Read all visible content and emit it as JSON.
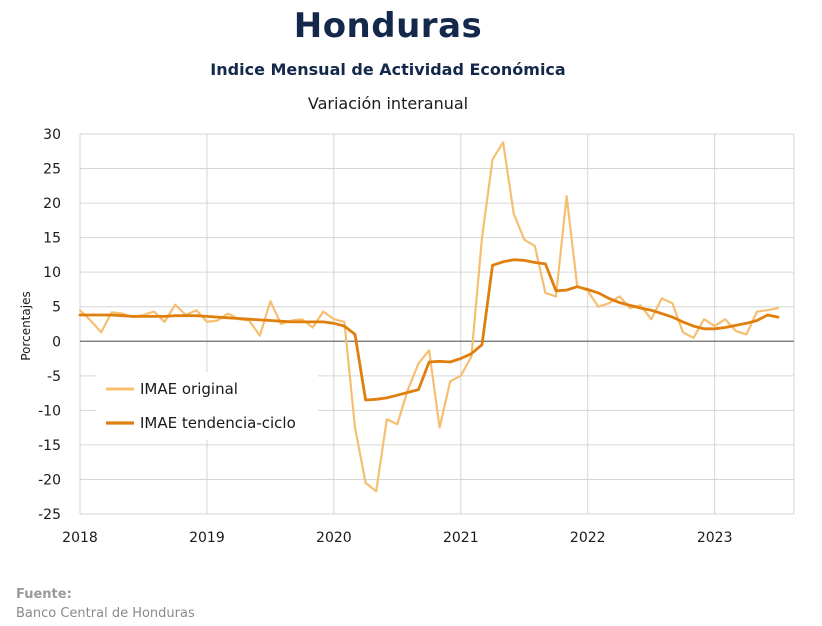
{
  "header": {
    "title": "Honduras",
    "subtitle": "Indice Mensual de  Actividad Económica",
    "subtitle2": "Variación interanual"
  },
  "source": {
    "label": "Fuente:",
    "text": "Banco Central de Honduras"
  },
  "colors": {
    "original": "#f5bf72",
    "trend": "#e07f0d",
    "zero_line": "#6b6b6b",
    "grid": "#d6d6d6"
  },
  "chart_data": {
    "type": "line",
    "ylabel": "Porcentajes",
    "xlabel": "",
    "ylim": [
      -25,
      30
    ],
    "yticks": [
      30,
      25,
      20,
      15,
      10,
      5,
      0,
      -5,
      -10,
      -15,
      -20,
      -25
    ],
    "xticks": [
      "2018",
      "2019",
      "2020",
      "2021",
      "2022",
      "2023"
    ],
    "x_start": "2018-01",
    "grid": true,
    "legend_position": "left",
    "series": [
      {
        "name": "IMAE original",
        "color": "#f5bf72",
        "values": [
          4.5,
          3.0,
          1.3,
          4.2,
          4.0,
          3.5,
          3.8,
          4.3,
          2.8,
          5.3,
          3.8,
          4.5,
          2.8,
          3.0,
          4.0,
          3.2,
          3.0,
          0.8,
          5.8,
          2.5,
          3.0,
          3.2,
          2.0,
          4.3,
          3.2,
          2.8,
          -12.5,
          -20.5,
          -21.7,
          -11.3,
          -12.0,
          -7.0,
          -3.2,
          -1.3,
          -12.5,
          -5.8,
          -5.0,
          -2.2,
          15.0,
          26.3,
          28.8,
          18.5,
          14.7,
          13.8,
          7.0,
          6.5,
          21.0,
          8.0,
          7.3,
          5.0,
          5.5,
          6.5,
          4.8,
          5.2,
          3.2,
          6.2,
          5.5,
          1.3,
          0.5,
          3.2,
          2.2,
          3.2,
          1.5,
          1.0,
          4.3,
          4.5,
          4.8
        ]
      },
      {
        "name": "IMAE tendencia-ciclo",
        "color": "#e07f0d",
        "values": [
          3.8,
          3.8,
          3.8,
          3.8,
          3.7,
          3.6,
          3.6,
          3.6,
          3.6,
          3.7,
          3.7,
          3.7,
          3.6,
          3.5,
          3.4,
          3.3,
          3.2,
          3.1,
          3.0,
          2.9,
          2.8,
          2.8,
          2.8,
          2.8,
          2.6,
          2.2,
          1.0,
          -8.5,
          -8.4,
          -8.2,
          -7.8,
          -7.4,
          -7.0,
          -3.0,
          -2.9,
          -3.0,
          -2.5,
          -1.8,
          -0.5,
          11.0,
          11.5,
          11.8,
          11.7,
          11.4,
          11.2,
          7.3,
          7.4,
          7.9,
          7.5,
          7.0,
          6.2,
          5.6,
          5.2,
          4.8,
          4.5,
          4.0,
          3.5,
          2.8,
          2.2,
          1.8,
          1.8,
          2.0,
          2.3,
          2.6,
          3.0,
          3.8,
          3.5
        ]
      }
    ]
  }
}
